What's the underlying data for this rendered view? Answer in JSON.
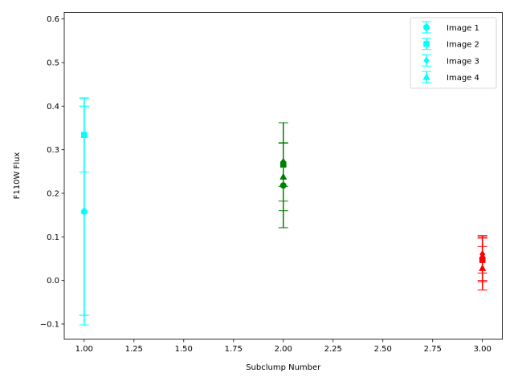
{
  "chart_data": {
    "type": "scatter",
    "xlabel": "Subclump Number",
    "ylabel": "F110W Flux",
    "xlim": [
      0.9,
      3.1
    ],
    "ylim": [
      -0.135,
      0.615
    ],
    "xticks": [
      1.0,
      1.25,
      1.5,
      1.75,
      2.0,
      2.25,
      2.5,
      2.75,
      3.0
    ],
    "xtick_labels": [
      "1.00",
      "1.25",
      "1.50",
      "1.75",
      "2.00",
      "2.25",
      "2.50",
      "2.75",
      "3.00"
    ],
    "yticks": [
      -0.1,
      0.0,
      0.1,
      0.2,
      0.3,
      0.4,
      0.5,
      0.6
    ],
    "ytick_labels": [
      "−0.1",
      "0.0",
      "0.1",
      "0.2",
      "0.3",
      "0.4",
      "0.5",
      "0.6"
    ],
    "grid": false,
    "legend_position": "top-right",
    "subclump_colors": {
      "1": "#00ffff",
      "2": "#008000",
      "3": "#ff0000"
    },
    "series": [
      {
        "name": "Image 1",
        "marker": "circle",
        "points": [
          {
            "x": 1,
            "y": 0.158,
            "err": 0.26
          },
          {
            "x": 2,
            "y": 0.218,
            "err": 0.097
          },
          {
            "x": 3,
            "y": 0.05,
            "err": 0.05
          }
        ]
      },
      {
        "name": "Image 2",
        "marker": "square",
        "points": [
          {
            "x": 1,
            "y": 0.334,
            "err": 0.085
          },
          {
            "x": 2,
            "y": 0.266,
            "err": 0.05
          },
          {
            "x": 3,
            "y": 0.047,
            "err": 0.05
          }
        ]
      },
      {
        "name": "Image 3",
        "marker": "diamond",
        "points": [
          {
            "x": 1,
            "y": 0.16,
            "err": 0.24
          },
          {
            "x": 2,
            "y": 0.272,
            "err": 0.09
          },
          {
            "x": 3,
            "y": 0.06,
            "err": 0.043
          }
        ]
      },
      {
        "name": "Image 4",
        "marker": "triangle",
        "points": [
          {
            "x": 1,
            "y": 0.16,
            "err": 0.24
          },
          {
            "x": 2,
            "y": 0.238,
            "err": 0.078
          },
          {
            "x": 3,
            "y": 0.028,
            "err": 0.05
          }
        ]
      }
    ]
  }
}
